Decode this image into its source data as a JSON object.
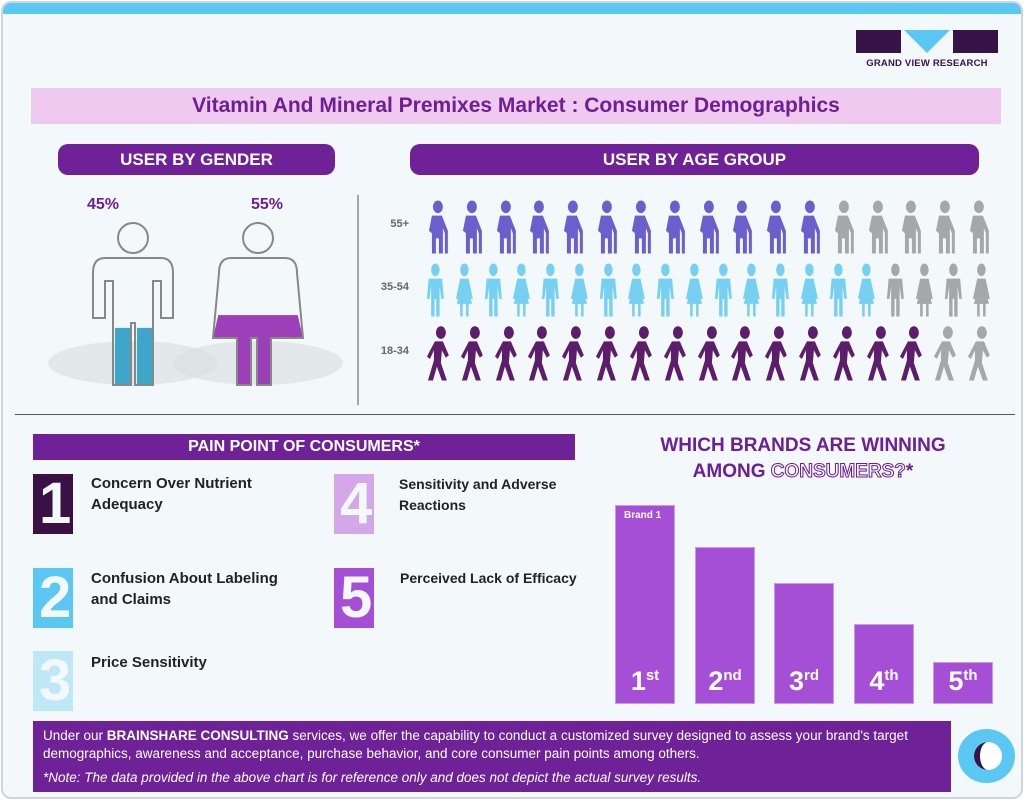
{
  "brand": {
    "logo_text": "GRAND VIEW RESEARCH"
  },
  "title": "Vitamin And Mineral Premixes Market : Consumer Demographics",
  "gender": {
    "heading": "USER BY GENDER",
    "male": {
      "label": "45%",
      "value": 45,
      "color": "#3ea6c9"
    },
    "female": {
      "label": "55%",
      "value": 55,
      "color": "#9c3fb8"
    }
  },
  "age": {
    "heading": "USER BY AGE GROUP",
    "inactive_color": "#a5a7a8",
    "groups": [
      {
        "label": "55+",
        "icon": "elderly-person-with-cane-icon",
        "filled": 12,
        "total": 17,
        "color": "#6a5fcd"
      },
      {
        "label": "35-54",
        "icon": "man-woman-pair-icon",
        "filled": 16,
        "total": 20,
        "color": "#76d0f2"
      },
      {
        "label": "18-34",
        "icon": "walking-person-icon",
        "filled": 15,
        "total": 17,
        "color": "#5c1d6b"
      }
    ]
  },
  "pain": {
    "heading": "PAIN POINT OF CONSUMERS*",
    "items": [
      {
        "num": "1",
        "text": "Concern Over Nutrient Adequacy",
        "color": "#3a1045"
      },
      {
        "num": "2",
        "text": "Confusion About Labeling and Claims",
        "color": "#5bc8f3"
      },
      {
        "num": "3",
        "text": "Price Sensitivity",
        "color": "#bfe8f7"
      },
      {
        "num": "4",
        "text": "Sensitivity and Adverse Reactions",
        "color": "#d4a8e8"
      },
      {
        "num": "5",
        "text": "Perceived Lack of Efficacy",
        "color": "#a54fd7"
      }
    ]
  },
  "brands": {
    "title_line1": "WHICH BRANDS ARE WINNING",
    "title_line2a": "AMONG ",
    "title_line2b": "CONSUMERS?",
    "title_star": "*",
    "chart_data": {
      "type": "bar",
      "categories": [
        "1st",
        "2nd",
        "3rd",
        "4th",
        "5th"
      ],
      "rank_num": [
        "1",
        "2",
        "3",
        "4",
        "5"
      ],
      "rank_suffix": [
        "st",
        "nd",
        "rd",
        "th",
        "th"
      ],
      "values": [
        100,
        79,
        61,
        40,
        21
      ],
      "top_label": "Brand 1",
      "color": "#a54fd7"
    }
  },
  "footer": {
    "pre": "Under our ",
    "bold": "BRAINSHARE CONSULTING",
    "post": " services, we offer the capability to conduct a customized survey designed to assess your brand's target demographics, awareness and acceptance, purchase behavior, and core consumer pain points among others.",
    "note": "*Note: The data provided in the above chart is for reference only and does not depict the actual survey results."
  }
}
